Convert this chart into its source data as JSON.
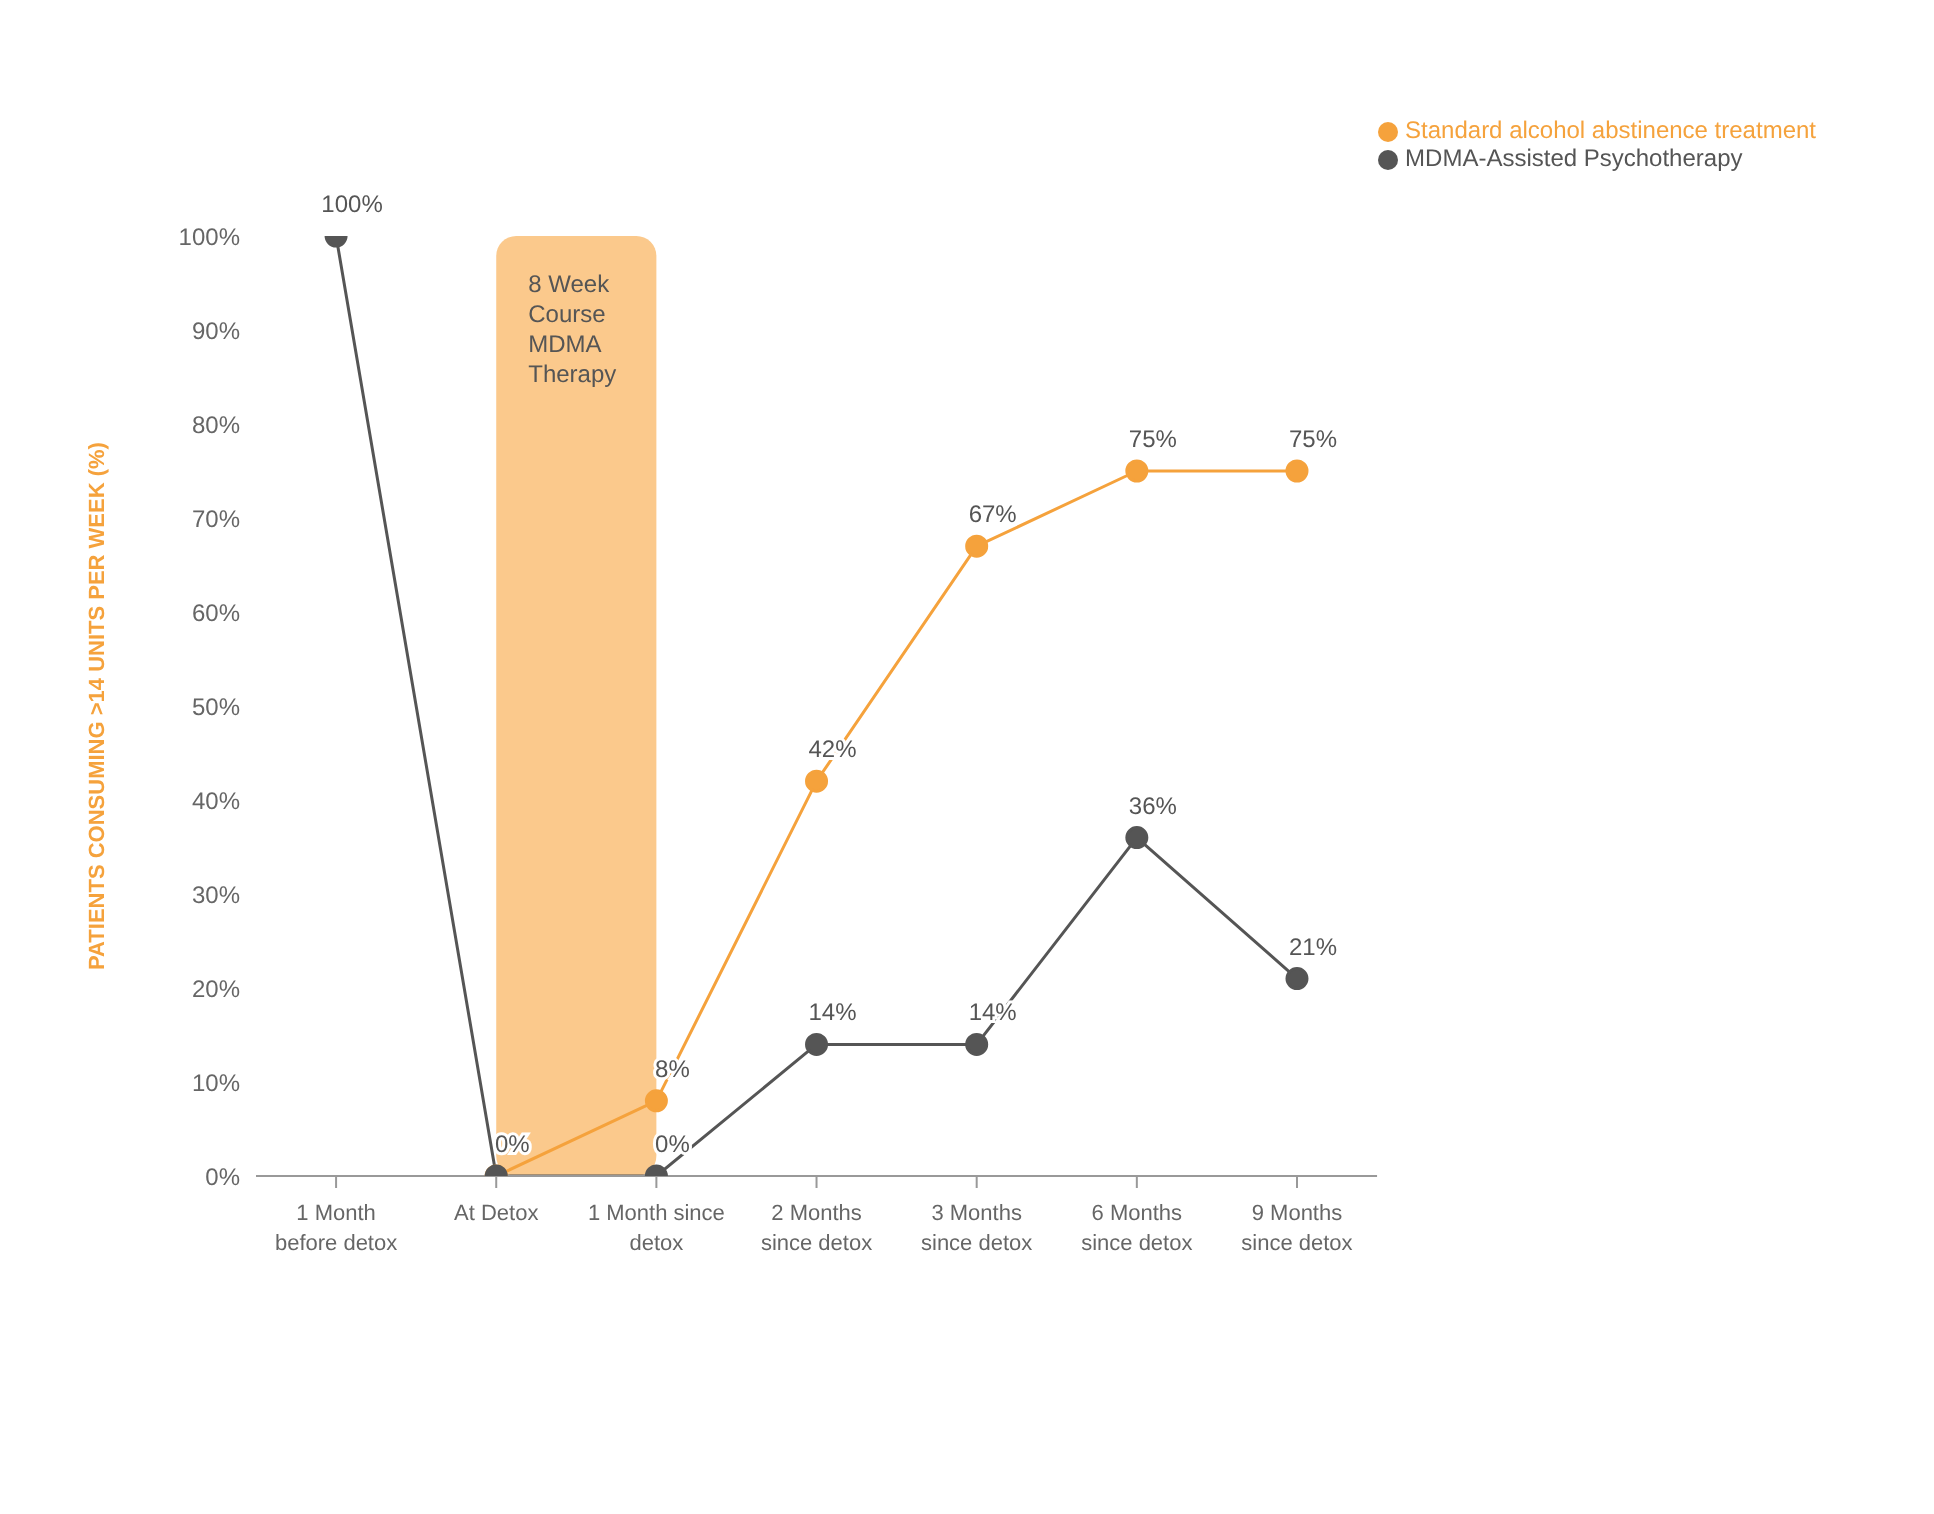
{
  "chart_data": {
    "type": "line",
    "ylabel": "PATIENTS CONSUMING >14 UNITS PER WEEK (%)",
    "categories": [
      "1 Month before detox",
      "At Detox",
      "1 Month since detox",
      "2 Months since detox",
      "3 Months since detox",
      "6 Months since detox",
      "9 Months since detox"
    ],
    "series": [
      {
        "name": "Standard alcohol abstinence treatment",
        "color": "#f5a23c",
        "values": [
          null,
          0,
          8,
          42,
          67,
          75,
          75
        ],
        "value_labels": [
          null,
          null,
          "8%",
          "42%",
          "67%",
          "75%",
          "75%"
        ]
      },
      {
        "name": "MDMA-Assisted Psychotherapy",
        "color": "#555555",
        "values": [
          100,
          0,
          0,
          14,
          14,
          36,
          21
        ],
        "value_labels": [
          "100%",
          "0%",
          "0%",
          "14%",
          "14%",
          "36%",
          "21%"
        ]
      }
    ],
    "ylim": [
      0,
      100
    ],
    "yticks": [
      {
        "value": 0,
        "label": "0%"
      },
      {
        "value": 10,
        "label": "10%"
      },
      {
        "value": 20,
        "label": "20%"
      },
      {
        "value": 30,
        "label": "30%"
      },
      {
        "value": 40,
        "label": "40%"
      },
      {
        "value": 50,
        "label": "50%"
      },
      {
        "value": 60,
        "label": "60%"
      },
      {
        "value": 70,
        "label": "70%"
      },
      {
        "value": 80,
        "label": "80%"
      },
      {
        "value": 90,
        "label": "90%"
      },
      {
        "value": 100,
        "label": "100%"
      }
    ],
    "bands": [
      {
        "axis": "x",
        "from": "At Detox",
        "to": "1 Month since detox",
        "label": "8 Week Course MDMA Therapy",
        "color": "#fbc98c"
      }
    ],
    "grid": false,
    "legend": "top right",
    "marker": "circle",
    "line_style": "solid"
  }
}
